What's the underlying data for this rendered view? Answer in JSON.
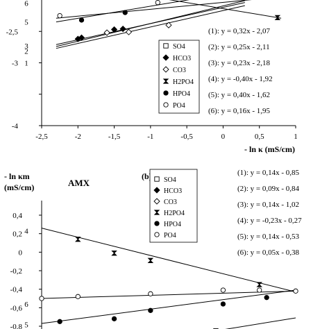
{
  "chart_data": [
    {
      "type": "scatter",
      "title": "",
      "xlabel": "- ln κ (mS/cm)",
      "ylabel": "",
      "xlim": [
        -2.5,
        1
      ],
      "ylim": [
        -4,
        -2
      ],
      "x_ticks": [
        -2.5,
        -2,
        -1.5,
        -1,
        -0.5,
        0,
        0.5,
        1
      ],
      "x_tick_labels": [
        "-2,5",
        "-2",
        "-1,5",
        "-1",
        "-0,5",
        "0",
        "0,5",
        "1"
      ],
      "y_ticks": [
        -4,
        -3.5,
        -3,
        -2.5
      ],
      "y_tick_labels": [
        "-4",
        "",
        "-3",
        "-2,5"
      ],
      "legend": {
        "placement": "center",
        "items": [
          {
            "name": "SO4",
            "marker": "square-open"
          },
          {
            "name": "HCO3",
            "marker": "diamond-filled"
          },
          {
            "name": "CO3",
            "marker": "diamond-open"
          },
          {
            "name": "H2PO4",
            "marker": "hourglass"
          },
          {
            "name": "HPO4",
            "marker": "circle-filled"
          },
          {
            "name": "PO4",
            "marker": "circle-open"
          }
        ]
      },
      "equations": [
        "(1): y = 0,32x - 2,07",
        "(2): y = 0,25x - 2,11",
        "(3): y = 0,23x - 2,18",
        "(4): y = -0,40x - 1,92",
        "(5): y = 0,40x - 1,62",
        "(6): y = 0,16x - 1,95"
      ],
      "line_labels": [
        {
          "text": "6",
          "y": -2.05
        },
        {
          "text": "5",
          "y": -2.35
        },
        {
          "text": "3",
          "y": -2.73
        },
        {
          "text": "2",
          "y": -2.81
        },
        {
          "text": "1",
          "y": -3.0
        }
      ],
      "lines": [
        {
          "name": "HCO3",
          "x": [
            -2.3,
            0.3
          ],
          "y": [
            -2.71,
            -2.04
          ]
        },
        {
          "name": "CO3",
          "x": [
            -2.3,
            0.3
          ],
          "y": [
            -2.77,
            -2.09
          ]
        },
        {
          "name": "SO4",
          "x": [
            -2.3,
            0.3
          ],
          "y": [
            -2.74,
            -2.01
          ]
        },
        {
          "name": "H2PO4",
          "x": [
            -1.5,
            0.8
          ],
          "y": [
            -1.85,
            -2.29
          ]
        },
        {
          "name": "HPO4",
          "x": [
            -2.3,
            0.8
          ],
          "y": [
            -2.35,
            -1.75
          ]
        },
        {
          "name": "PO4",
          "x": [
            -2.3,
            0.8
          ],
          "y": [
            -2.29,
            -1.95
          ]
        }
      ],
      "series": [
        {
          "name": "SO4",
          "marker": "square-open",
          "points": [
            [
              -0.1,
              -1.95
            ],
            [
              0.2,
              -1.96
            ]
          ]
        },
        {
          "name": "HCO3",
          "marker": "diamond-filled",
          "points": [
            [
              -2.0,
              -2.62
            ],
            [
              -1.95,
              -2.6
            ],
            [
              -1.38,
              -2.46
            ],
            [
              -1.5,
              -2.47
            ]
          ]
        },
        {
          "name": "CO3",
          "marker": "diamond-open",
          "points": [
            [
              -1.3,
              -2.51
            ],
            [
              -0.75,
              -2.4
            ],
            [
              -1.6,
              -2.52
            ]
          ]
        },
        {
          "name": "H2PO4",
          "marker": "hourglass",
          "points": [
            [
              0.75,
              -2.28
            ]
          ]
        },
        {
          "name": "HPO4",
          "marker": "circle-filled",
          "points": [
            [
              -1.95,
              -2.32
            ],
            [
              -1.35,
              -2.2
            ],
            [
              0.2,
              -1.95
            ]
          ]
        },
        {
          "name": "PO4",
          "marker": "circle-open",
          "points": [
            [
              -2.25,
              -2.25
            ],
            [
              -0.9,
              -2.04
            ]
          ]
        }
      ]
    },
    {
      "type": "scatter",
      "title": "AMX",
      "panel_label": "(b)",
      "ylabel": "- ln κm (mS/cm)",
      "xlabel": "",
      "xlim": [
        -2.5,
        1
      ],
      "ylim": [
        -0.8,
        0.4
      ],
      "y_ticks": [
        0.4,
        0.2,
        0,
        -0.2,
        -0.4,
        -0.6,
        -0.8
      ],
      "y_tick_labels": [
        "0,4",
        "0,2",
        "0",
        "-0,2",
        "-0,4",
        "-0,6",
        "-0,8"
      ],
      "legend": {
        "placement": "center",
        "items": [
          {
            "name": "SO4",
            "marker": "square-open"
          },
          {
            "name": "HCO3",
            "marker": "diamond-filled"
          },
          {
            "name": "CO3",
            "marker": "diamond-open"
          },
          {
            "name": "H2PO4",
            "marker": "hourglass"
          },
          {
            "name": "HPO4",
            "marker": "circle-filled"
          },
          {
            "name": "PO4",
            "marker": "circle-open"
          }
        ]
      },
      "equations": [
        "(1): y = 0,14x - 0,85",
        "(2): y = 0,09x - 0,84",
        "(3): y = 0,14x - 1,02",
        "(4): y = -0,23x - 0,27",
        "(5): y = 0,14x - 0,53",
        "(6): y = 0,05x - 0,38"
      ],
      "line_labels": [
        {
          "text": "4",
          "y": 0.23
        },
        {
          "text": "6",
          "y": -0.56
        },
        {
          "text": "5",
          "y": -0.78
        }
      ],
      "lines": [
        {
          "name": "H2PO4",
          "x": [
            -2.5,
            1.0
          ],
          "y": [
            0.26,
            -0.43
          ]
        },
        {
          "name": "PO4",
          "x": [
            -2.5,
            1.0
          ],
          "y": [
            -0.5,
            -0.42
          ]
        },
        {
          "name": "HPO4",
          "x": [
            -2.5,
            1.0
          ],
          "y": [
            -0.77,
            -0.41
          ]
        },
        {
          "name": "SO4",
          "x": [
            -0.1,
            1.0
          ],
          "y": [
            -0.85,
            -0.71
          ]
        }
      ],
      "series": [
        {
          "name": "H2PO4",
          "marker": "hourglass",
          "points": [
            [
              -2.0,
              0.14
            ],
            [
              -1.5,
              -0.01
            ],
            [
              -1.0,
              -0.09
            ],
            [
              0.5,
              -0.35
            ]
          ]
        },
        {
          "name": "PO4",
          "marker": "circle-open",
          "points": [
            [
              -2.5,
              -0.5
            ],
            [
              -2.0,
              -0.48
            ],
            [
              -1.0,
              -0.45
            ],
            [
              0.0,
              -0.41
            ],
            [
              0.5,
              -0.41
            ],
            [
              1.0,
              -0.42
            ]
          ]
        },
        {
          "name": "HPO4",
          "marker": "circle-filled",
          "points": [
            [
              -2.25,
              -0.75
            ],
            [
              -1.5,
              -0.72
            ],
            [
              -1.0,
              -0.63
            ],
            [
              0.0,
              -0.56
            ],
            [
              0.6,
              -0.49
            ]
          ]
        },
        {
          "name": "SO4",
          "marker": "square-open",
          "points": [
            [
              -0.1,
              -0.85
            ]
          ]
        }
      ]
    }
  ]
}
